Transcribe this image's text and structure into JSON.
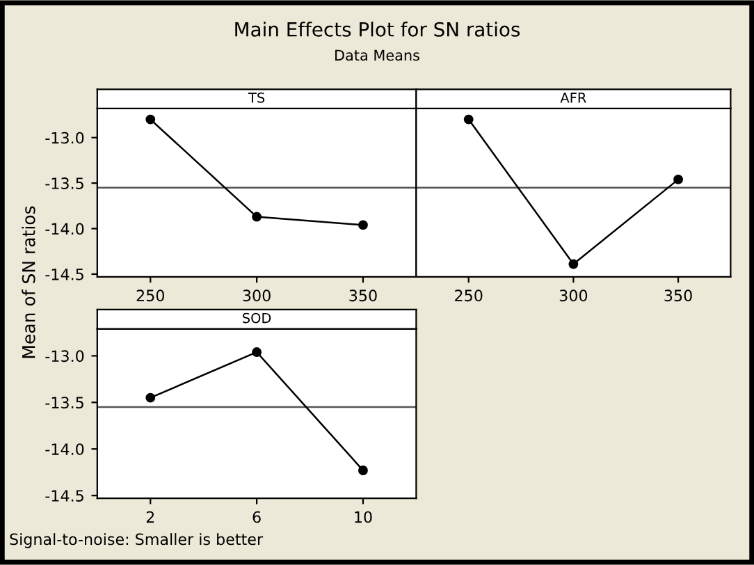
{
  "chart_data": [
    {
      "type": "line",
      "title": "Main Effects Plot for SN ratios",
      "subtitle": "Data Means",
      "ylabel": "Mean of SN ratios",
      "annotations": [
        "Signal-to-noise: Smaller is better"
      ],
      "legend_title": "TS",
      "categories": [
        "250",
        "300",
        "350"
      ],
      "series": [
        {
          "color": "#000000",
          "values": [
            -12.8,
            -13.87,
            -13.96
          ]
        }
      ],
      "ylim": [
        -14.53,
        -12.68
      ],
      "yticks": [
        {
          "value": -14.5,
          "label": "-14.5"
        },
        {
          "value": -14.0,
          "label": "-14.0"
        },
        {
          "value": -13.5,
          "label": "-13.5"
        },
        {
          "value": -13.0,
          "label": "-13.0"
        }
      ],
      "ref_lines": [
        {
          "axis": "y",
          "value": -13.55,
          "color": "#555555"
        }
      ],
      "marker": "circle",
      "line_style": "solid",
      "grid": false,
      "legend": false
    },
    {
      "type": "line",
      "legend_title": "AFR",
      "categories": [
        "250",
        "300",
        "350"
      ],
      "series": [
        {
          "color": "#000000",
          "values": [
            -12.8,
            -14.39,
            -13.46
          ]
        }
      ],
      "ylim": [
        -14.53,
        -12.68
      ],
      "tick_labels": "x",
      "ref_lines": [
        {
          "axis": "y",
          "value": -13.55,
          "color": "#555555"
        }
      ],
      "marker": "circle",
      "line_style": "solid",
      "grid": false,
      "legend": false
    },
    {
      "type": "line",
      "legend_title": "SOD",
      "categories": [
        "2",
        "6",
        "10"
      ],
      "series": [
        {
          "color": "#000000",
          "values": [
            -13.45,
            -12.96,
            -14.23
          ]
        }
      ],
      "ylim": [
        -14.53,
        -12.71
      ],
      "yticks": [
        {
          "value": -14.5,
          "label": "-14.5"
        },
        {
          "value": -14.0,
          "label": "-14.0"
        },
        {
          "value": -13.5,
          "label": "-13.5"
        },
        {
          "value": -13.0,
          "label": "-13.0"
        }
      ],
      "ref_lines": [
        {
          "axis": "y",
          "value": -13.55,
          "color": "#555555"
        }
      ],
      "marker": "circle",
      "line_style": "solid",
      "grid": false,
      "legend": false
    }
  ]
}
